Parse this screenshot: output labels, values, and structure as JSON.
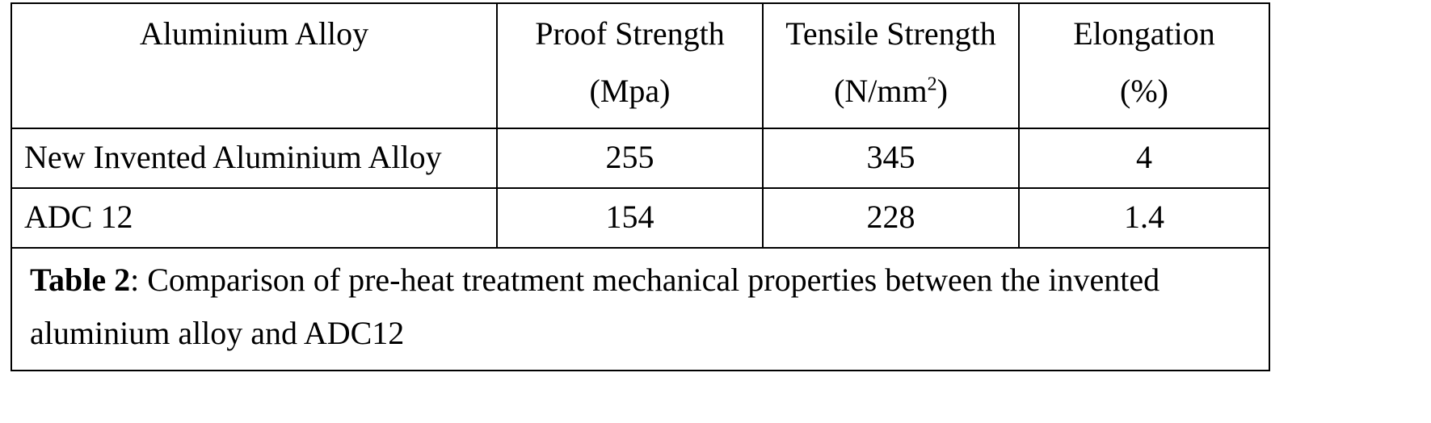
{
  "table": {
    "headers": [
      {
        "line1": "Aluminium Alloy",
        "line2": ""
      },
      {
        "line1": "Proof Strength",
        "line2": "(Mpa)"
      },
      {
        "line1": "Tensile Strength",
        "line2_pre": "(N/mm",
        "line2_sup": "2",
        "line2_post": ")"
      },
      {
        "line1": "Elongation",
        "line2": "(%)"
      }
    ],
    "rows": [
      [
        "New Invented Aluminium Alloy",
        "255",
        "345",
        "4"
      ],
      [
        "ADC 12",
        "154",
        "228",
        "1.4"
      ]
    ],
    "caption": {
      "label": "Table 2",
      "text": ": Comparison of pre-heat treatment mechanical properties between the invented aluminium alloy and ADC12"
    }
  }
}
